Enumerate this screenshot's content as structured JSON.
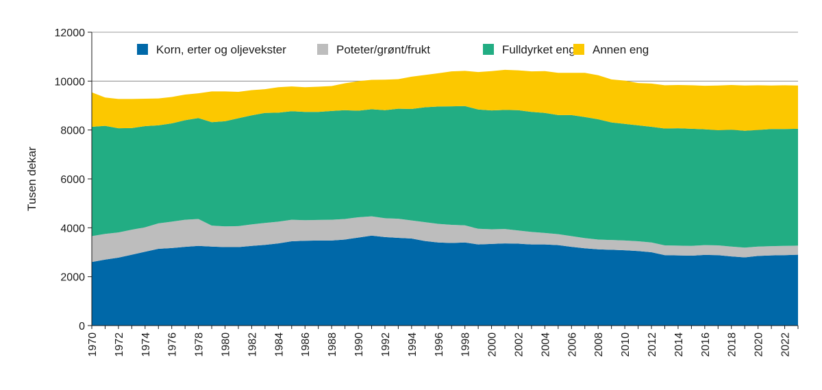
{
  "chart_data": {
    "type": "area",
    "stacked": true,
    "title": "",
    "xlabel": "",
    "ylabel": "Tusen dekar",
    "ylim": [
      0,
      12000
    ],
    "yticks": [
      0,
      2000,
      4000,
      6000,
      8000,
      10000,
      12000
    ],
    "xlim": [
      1970,
      2023
    ],
    "xticks": [
      1970,
      1972,
      1974,
      1976,
      1978,
      1980,
      1982,
      1984,
      1986,
      1988,
      1990,
      1992,
      1994,
      1996,
      1998,
      2000,
      2002,
      2004,
      2006,
      2008,
      2010,
      2012,
      2014,
      2016,
      2018,
      2020,
      2022
    ],
    "grid": "horizontal",
    "legend_position": "top",
    "x": [
      1970,
      1971,
      1972,
      1973,
      1974,
      1975,
      1976,
      1977,
      1978,
      1979,
      1980,
      1981,
      1982,
      1983,
      1984,
      1985,
      1986,
      1987,
      1988,
      1989,
      1990,
      1991,
      1992,
      1993,
      1994,
      1995,
      1996,
      1997,
      1998,
      1999,
      2000,
      2001,
      2002,
      2003,
      2004,
      2005,
      2006,
      2007,
      2008,
      2009,
      2010,
      2011,
      2012,
      2013,
      2014,
      2015,
      2016,
      2017,
      2018,
      2019,
      2020,
      2021,
      2022,
      2023
    ],
    "series": [
      {
        "name": "Korn, erter og oljevekster",
        "color": "#0068a8",
        "values": [
          2600,
          2700,
          2780,
          2900,
          3020,
          3140,
          3170,
          3220,
          3260,
          3230,
          3210,
          3210,
          3260,
          3300,
          3360,
          3450,
          3470,
          3480,
          3480,
          3520,
          3600,
          3680,
          3620,
          3590,
          3560,
          3460,
          3400,
          3380,
          3400,
          3320,
          3340,
          3360,
          3350,
          3320,
          3320,
          3290,
          3220,
          3160,
          3120,
          3100,
          3080,
          3050,
          3000,
          2880,
          2870,
          2860,
          2890,
          2880,
          2830,
          2790,
          2850,
          2870,
          2880,
          2900
        ]
      },
      {
        "name": "Poteter/grønt/frukt",
        "color": "#bdbdbd",
        "values": [
          1060,
          1050,
          1030,
          1020,
          1000,
          1040,
          1080,
          1110,
          1100,
          860,
          850,
          860,
          880,
          900,
          890,
          880,
          840,
          840,
          850,
          840,
          830,
          790,
          770,
          780,
          740,
          770,
          760,
          740,
          700,
          640,
          600,
          590,
          540,
          510,
          470,
          450,
          440,
          420,
          400,
          400,
          400,
          400,
          400,
          400,
          400,
          400,
          400,
          400,
          400,
          400,
          380,
          380,
          380,
          370
        ]
      },
      {
        "name": "Fulldyrket eng",
        "color": "#22ad83",
        "values": [
          4470,
          4420,
          4260,
          4160,
          4140,
          4010,
          4020,
          4070,
          4130,
          4230,
          4300,
          4410,
          4460,
          4500,
          4460,
          4440,
          4430,
          4420,
          4450,
          4450,
          4360,
          4380,
          4420,
          4500,
          4560,
          4700,
          4800,
          4850,
          4880,
          4880,
          4860,
          4870,
          4920,
          4910,
          4910,
          4870,
          4950,
          4950,
          4920,
          4810,
          4770,
          4740,
          4730,
          4780,
          4800,
          4790,
          4740,
          4710,
          4780,
          4780,
          4770,
          4790,
          4780,
          4780
        ]
      },
      {
        "name": "Annen eng",
        "color": "#fcc800",
        "values": [
          1410,
          1160,
          1200,
          1190,
          1120,
          1100,
          1080,
          1050,
          1010,
          1260,
          1220,
          1080,
          1030,
          970,
          1040,
          1010,
          1010,
          1030,
          1020,
          1100,
          1210,
          1200,
          1250,
          1210,
          1320,
          1320,
          1360,
          1430,
          1440,
          1530,
          1610,
          1640,
          1630,
          1660,
          1710,
          1730,
          1730,
          1810,
          1800,
          1760,
          1770,
          1730,
          1770,
          1770,
          1770,
          1780,
          1780,
          1830,
          1830,
          1850,
          1830,
          1780,
          1790,
          1770
        ]
      }
    ]
  }
}
